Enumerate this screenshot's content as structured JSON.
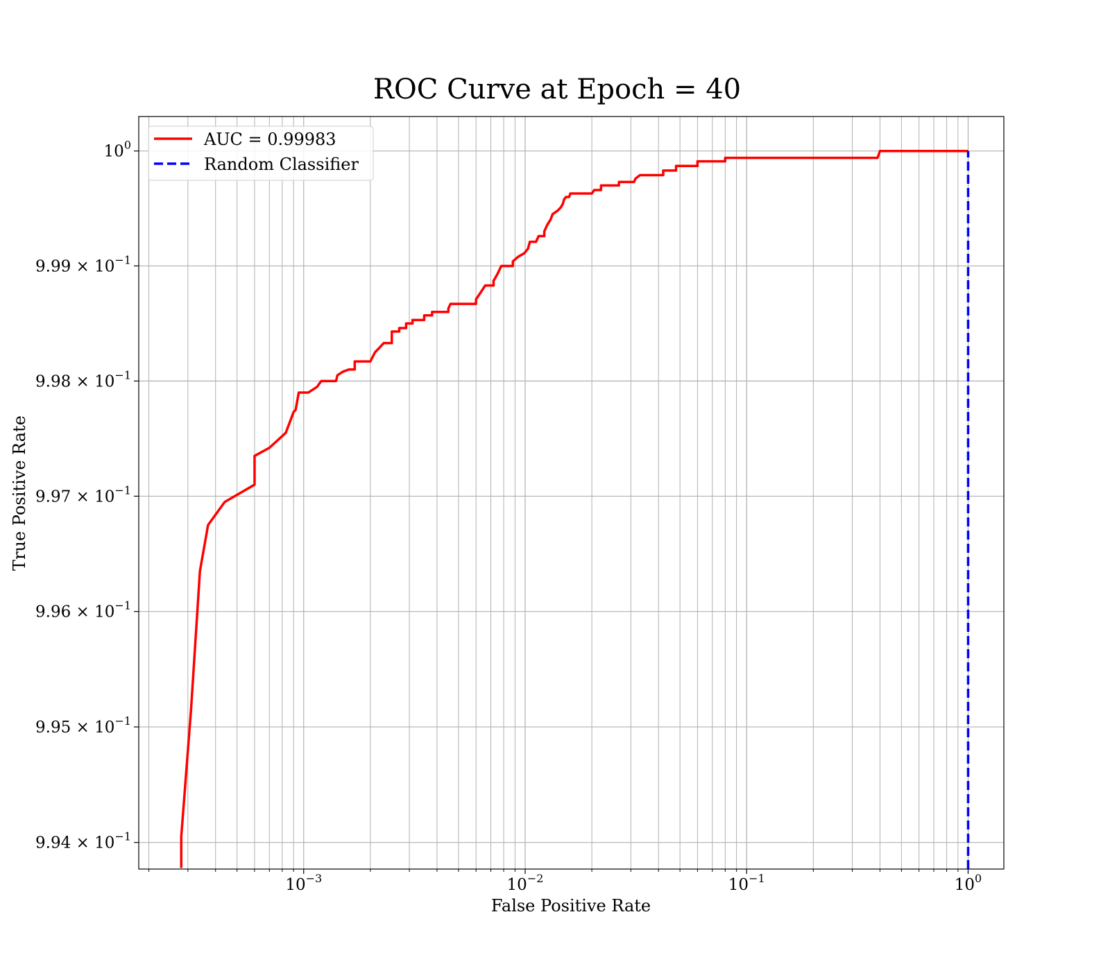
{
  "chart_data": {
    "type": "line",
    "title": "ROC Curve at Epoch = 40",
    "xlabel": "False Positive Rate",
    "ylabel": "True Positive Rate",
    "x_scale": "log",
    "y_scale": "log",
    "xlim": [
      0.00018,
      1.45
    ],
    "ylim": [
      0.99377,
      1.0003
    ],
    "x_ticks": [
      {
        "value": 0.001,
        "base": "10",
        "exp": "−3"
      },
      {
        "value": 0.01,
        "base": "10",
        "exp": "−2"
      },
      {
        "value": 0.1,
        "base": "10",
        "exp": "−1"
      },
      {
        "value": 1,
        "base": "10",
        "exp": "0"
      }
    ],
    "y_ticks": [
      {
        "value": 1.0,
        "mantissa": "",
        "base": "10",
        "exp": "0"
      },
      {
        "value": 0.999,
        "mantissa": "9.99",
        "base": "10",
        "exp": "−1"
      },
      {
        "value": 0.998,
        "mantissa": "9.98",
        "base": "10",
        "exp": "−1"
      },
      {
        "value": 0.997,
        "mantissa": "9.97",
        "base": "10",
        "exp": "−1"
      },
      {
        "value": 0.996,
        "mantissa": "9.96",
        "base": "10",
        "exp": "−1"
      },
      {
        "value": 0.995,
        "mantissa": "9.95",
        "base": "10",
        "exp": "−1"
      },
      {
        "value": 0.994,
        "mantissa": "9.94",
        "base": "10",
        "exp": "−1"
      }
    ],
    "grid": true,
    "legend_position": "top-left",
    "series": [
      {
        "name": "AUC = 0.99983",
        "color": "#ff0000",
        "style": "solid",
        "points": [
          [
            0.00028,
            0.99378
          ],
          [
            0.00028,
            0.99405
          ],
          [
            0.00031,
            0.99515
          ],
          [
            0.00034,
            0.99635
          ],
          [
            0.00037,
            0.99675
          ],
          [
            0.00044,
            0.99695
          ],
          [
            0.0006,
            0.9971
          ],
          [
            0.0006,
            0.99735
          ],
          [
            0.0007,
            0.99742
          ],
          [
            0.00083,
            0.99755
          ],
          [
            0.00088,
            0.99768
          ],
          [
            0.0009,
            0.99773
          ],
          [
            0.00092,
            0.99775
          ],
          [
            0.00095,
            0.9979
          ],
          [
            0.00105,
            0.9979
          ],
          [
            0.00115,
            0.99795
          ],
          [
            0.0012,
            0.998
          ],
          [
            0.0014,
            0.998
          ],
          [
            0.00142,
            0.99805
          ],
          [
            0.0015,
            0.99808
          ],
          [
            0.0016,
            0.9981
          ],
          [
            0.0017,
            0.9981
          ],
          [
            0.0017,
            0.99817
          ],
          [
            0.002,
            0.99817
          ],
          [
            0.0021,
            0.99825
          ],
          [
            0.0022,
            0.99829
          ],
          [
            0.0023,
            0.99833
          ],
          [
            0.0025,
            0.99833
          ],
          [
            0.0025,
            0.99843
          ],
          [
            0.0027,
            0.99843
          ],
          [
            0.0027,
            0.99846
          ],
          [
            0.0029,
            0.99846
          ],
          [
            0.0029,
            0.9985
          ],
          [
            0.0031,
            0.9985
          ],
          [
            0.0031,
            0.99853
          ],
          [
            0.0035,
            0.99853
          ],
          [
            0.0035,
            0.99857
          ],
          [
            0.0038,
            0.99857
          ],
          [
            0.0038,
            0.9986
          ],
          [
            0.0045,
            0.9986
          ],
          [
            0.0045,
            0.99863
          ],
          [
            0.0046,
            0.99867
          ],
          [
            0.006,
            0.99867
          ],
          [
            0.006,
            0.99871
          ],
          [
            0.0062,
            0.99875
          ],
          [
            0.0064,
            0.99879
          ],
          [
            0.0066,
            0.99883
          ],
          [
            0.0072,
            0.99883
          ],
          [
            0.0072,
            0.99887
          ],
          [
            0.0075,
            0.99893
          ],
          [
            0.0078,
            0.999
          ],
          [
            0.0088,
            0.999
          ],
          [
            0.0088,
            0.99904
          ],
          [
            0.0093,
            0.99908
          ],
          [
            0.0099,
            0.99911
          ],
          [
            0.0103,
            0.99915
          ],
          [
            0.0105,
            0.99921
          ],
          [
            0.0112,
            0.99921
          ],
          [
            0.0115,
            0.99926
          ],
          [
            0.0122,
            0.99926
          ],
          [
            0.0122,
            0.9993
          ],
          [
            0.0126,
            0.99936
          ],
          [
            0.013,
            0.9994
          ],
          [
            0.0133,
            0.99945
          ],
          [
            0.014,
            0.99948
          ],
          [
            0.0145,
            0.99951
          ],
          [
            0.0148,
            0.99954
          ],
          [
            0.015,
            0.99958
          ],
          [
            0.0153,
            0.9996
          ],
          [
            0.0158,
            0.9996
          ],
          [
            0.016,
            0.99963
          ],
          [
            0.02,
            0.99963
          ],
          [
            0.0205,
            0.99966
          ],
          [
            0.022,
            0.99966
          ],
          [
            0.022,
            0.9997
          ],
          [
            0.0265,
            0.9997
          ],
          [
            0.0265,
            0.99973
          ],
          [
            0.031,
            0.99973
          ],
          [
            0.0315,
            0.99976
          ],
          [
            0.033,
            0.99979
          ],
          [
            0.042,
            0.99979
          ],
          [
            0.042,
            0.99983
          ],
          [
            0.048,
            0.99983
          ],
          [
            0.048,
            0.99987
          ],
          [
            0.06,
            0.99987
          ],
          [
            0.06,
            0.99991
          ],
          [
            0.08,
            0.99991
          ],
          [
            0.08,
            0.99994
          ],
          [
            0.39,
            0.99994
          ],
          [
            0.4,
            1.0
          ],
          [
            1.0,
            1.0
          ]
        ]
      },
      {
        "name": "Random Classifier",
        "color": "#0000ff",
        "style": "dashed",
        "points": [
          [
            1.0,
            0.99377
          ],
          [
            1.0,
            1.0
          ]
        ]
      }
    ]
  }
}
